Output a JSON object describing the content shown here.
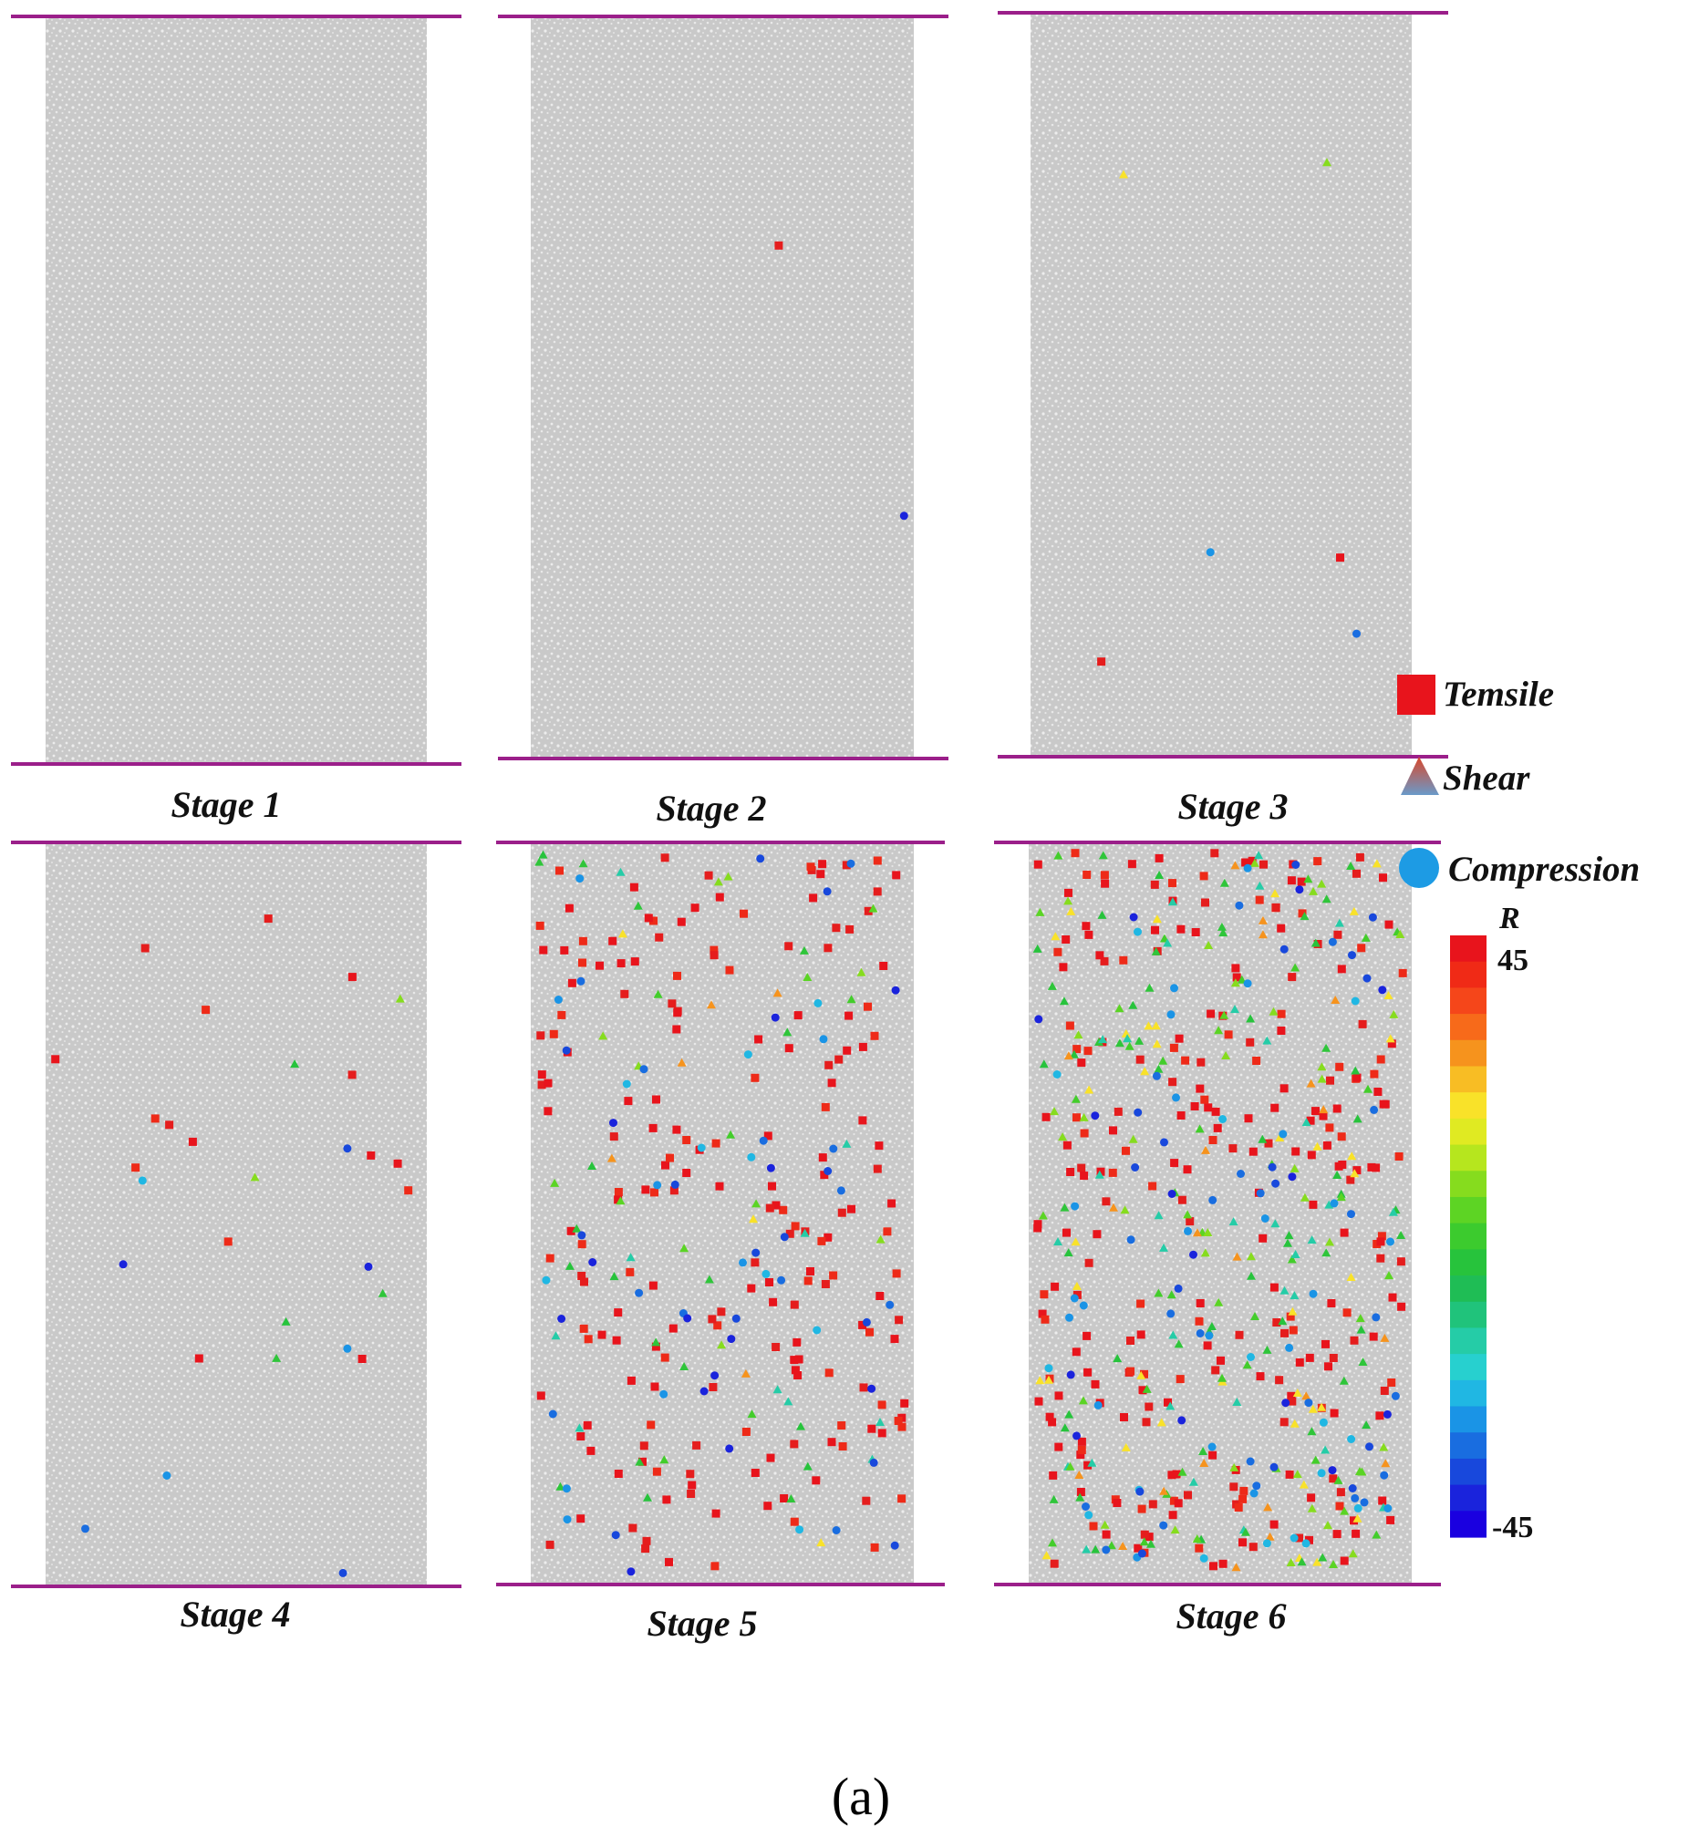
{
  "panels": [
    {
      "label": "Stage 1",
      "tensile": 0,
      "shear": 0,
      "compression": 0
    },
    {
      "label": "Stage 2",
      "tensile": 1,
      "shear": 0,
      "compression": 1
    },
    {
      "label": "Stage 3",
      "tensile": 2,
      "shear": 2,
      "compression": 2
    },
    {
      "label": "Stage 4",
      "tensile": 16,
      "shear": 6,
      "compression": 8
    },
    {
      "label": "Stage 5",
      "tensile": 190,
      "shear": 55,
      "compression": 55
    },
    {
      "label": "Stage 6",
      "tensile": 250,
      "shear": 230,
      "compression": 90
    }
  ],
  "legend": {
    "tensile_label": "Temsile",
    "shear_label": "Shear",
    "compression_label": "Compression"
  },
  "scale": {
    "title": "R",
    "max_label": "45",
    "min_label": "-45",
    "colors": [
      "#e8141c",
      "#f02a16",
      "#f5461a",
      "#f76a1a",
      "#f6931d",
      "#f8bd24",
      "#f9e229",
      "#e0ea22",
      "#b6e61e",
      "#86dc1e",
      "#5dd424",
      "#3ccb2e",
      "#27c33c",
      "#1fbd55",
      "#20c37b",
      "#25cca7",
      "#27d0cf",
      "#20b7e3",
      "#1a94e6",
      "#196de0",
      "#1848dc",
      "#1a23dc",
      "#1a00e0"
    ]
  },
  "caption": "(a)"
}
